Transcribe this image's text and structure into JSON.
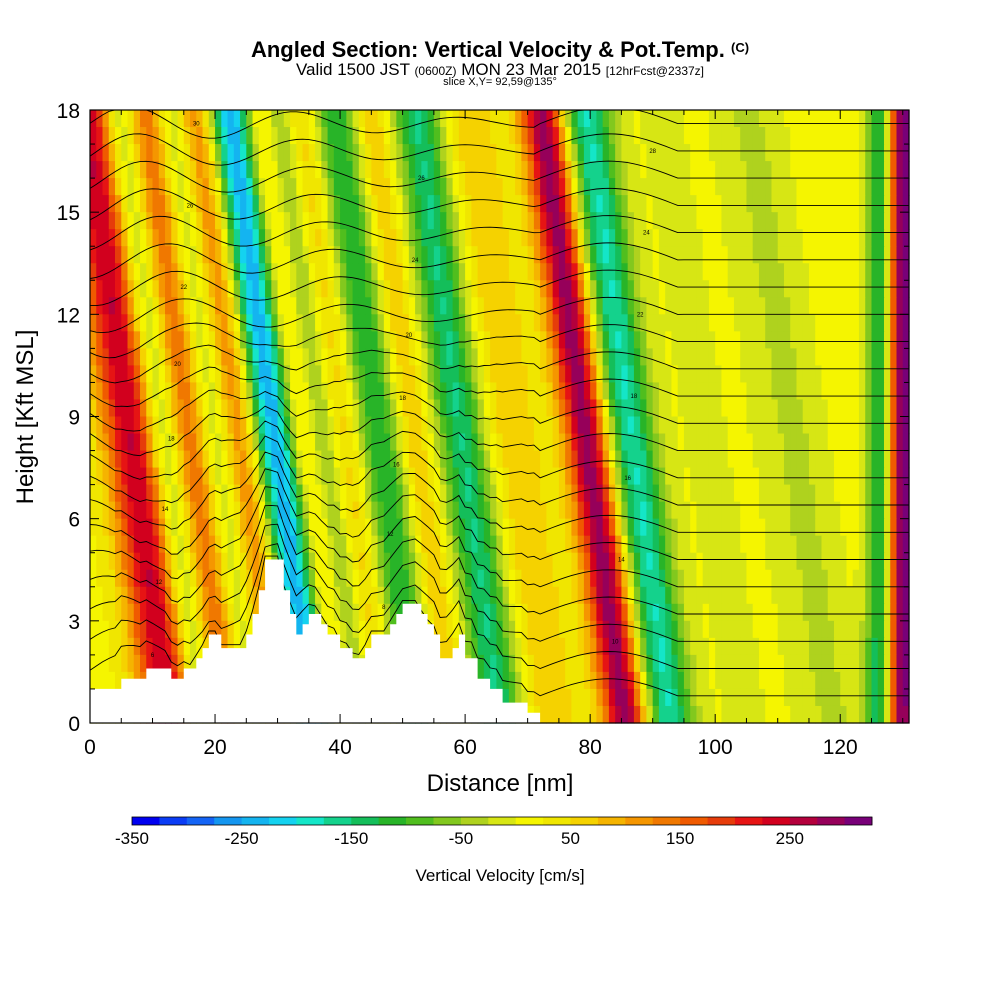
{
  "header": {
    "title": "Angled Section: Vertical Velocity & Pot.Temp.",
    "title_tag": "(C)",
    "valid_prefix": "Valid 1500 JST",
    "valid_zulu": "(0600Z)",
    "valid_date": "MON 23 Mar 2015",
    "forecast": "[12hrFcst@2337z]",
    "slice": "slice X,Y= 92,59@135°"
  },
  "chart_data": {
    "type": "heatmap",
    "title": "Angled Section: Vertical Velocity & Pot.Temp.",
    "xlabel": "Distance [nm]",
    "ylabel": "Height [Kft MSL]",
    "xlim": [
      0,
      131
    ],
    "ylim": [
      0,
      18
    ],
    "x_ticks": [
      "0",
      "20",
      "40",
      "60",
      "80",
      "100",
      "120"
    ],
    "x_tick_values": [
      0,
      20,
      40,
      60,
      80,
      100,
      120
    ],
    "y_ticks": [
      "0",
      "3",
      "6",
      "9",
      "12",
      "15",
      "18"
    ],
    "y_tick_values": [
      0,
      3,
      6,
      9,
      12,
      15,
      18
    ],
    "series": [
      {
        "name": "Vertical Velocity [cm/s]",
        "kind": "filled-contour"
      },
      {
        "name": "Pot.Temp.",
        "kind": "line-contour",
        "unit": "C"
      }
    ],
    "colorbar": {
      "label": "Vertical Velocity [cm/s]",
      "min": -350,
      "max": 300,
      "step": 25,
      "tick_labels": [
        "-350",
        "-250",
        "-150",
        "-50",
        "50",
        "150",
        "250"
      ],
      "tick_values": [
        -350,
        -250,
        -150,
        -50,
        50,
        150,
        250
      ],
      "colors": [
        "#0000f0",
        "#0a3cf5",
        "#1464f5",
        "#1496f0",
        "#14b4f0",
        "#14d2f0",
        "#14e6c8",
        "#14d28c",
        "#14be5a",
        "#28b428",
        "#50be1e",
        "#82c81e",
        "#afd21e",
        "#d7e614",
        "#f5f500",
        "#f0e600",
        "#f5d200",
        "#f5b400",
        "#f59600",
        "#f07800",
        "#f05a00",
        "#e63c0a",
        "#e61414",
        "#d2001e",
        "#b4003c",
        "#96005a",
        "#780078"
      ]
    },
    "velocity_bands": [
      {
        "x": 4,
        "w": 3.5,
        "peak": 100
      },
      {
        "x": 7,
        "w": 3.5,
        "peak": 175
      },
      {
        "x": 11.5,
        "w": 3,
        "peak": -100
      },
      {
        "x": 15.5,
        "w": 3.5,
        "peak": 150
      },
      {
        "x": 19.5,
        "w": 3,
        "peak": -100
      },
      {
        "x": 23.5,
        "w": 3.5,
        "peak": 125
      },
      {
        "x": 29,
        "w": 3.5,
        "peak": -275
      },
      {
        "x": 34,
        "w": 3,
        "peak": 100
      },
      {
        "x": 36.5,
        "w": 3,
        "peak": -125
      },
      {
        "x": 40,
        "w": 3,
        "peak": 75
      },
      {
        "x": 46,
        "w": 4,
        "peak": -150
      },
      {
        "x": 51,
        "w": 3,
        "peak": 75
      },
      {
        "x": 59,
        "w": 4,
        "peak": -175
      },
      {
        "x": 67,
        "w": 5,
        "peak": 50
      },
      {
        "x": 79,
        "w": 3.5,
        "peak": 275
      },
      {
        "x": 86,
        "w": 4,
        "peak": -200
      },
      {
        "x": 98,
        "w": 6,
        "peak": -25
      },
      {
        "x": 112,
        "w": 6,
        "peak": -50
      },
      {
        "x": 126,
        "w": 2,
        "peak": -150
      },
      {
        "x": 130,
        "w": 2,
        "peak": 300
      }
    ],
    "terrain": [
      [
        0,
        1
      ],
      [
        5,
        1
      ],
      [
        5,
        1.3
      ],
      [
        9,
        1.3
      ],
      [
        9,
        1.6
      ],
      [
        13,
        1.6
      ],
      [
        13,
        1.3
      ],
      [
        15,
        1.3
      ],
      [
        15,
        1.6
      ],
      [
        17,
        1.6
      ],
      [
        17,
        1.9
      ],
      [
        18,
        1.9
      ],
      [
        18,
        2.2
      ],
      [
        19,
        2.2
      ],
      [
        19,
        2.6
      ],
      [
        21,
        2.6
      ],
      [
        21,
        2.2
      ],
      [
        25,
        2.2
      ],
      [
        25,
        2.6
      ],
      [
        26,
        2.6
      ],
      [
        26,
        3.2
      ],
      [
        27,
        3.2
      ],
      [
        27,
        3.9
      ],
      [
        28,
        3.9
      ],
      [
        28,
        4.8
      ],
      [
        31,
        4.8
      ],
      [
        31,
        3.9
      ],
      [
        32,
        3.9
      ],
      [
        32,
        3.2
      ],
      [
        33,
        3.2
      ],
      [
        33,
        2.6
      ],
      [
        34,
        2.6
      ],
      [
        34,
        2.9
      ],
      [
        35,
        2.9
      ],
      [
        35,
        3.2
      ],
      [
        37,
        3.2
      ],
      [
        37,
        2.9
      ],
      [
        38,
        2.9
      ],
      [
        38,
        2.6
      ],
      [
        40,
        2.6
      ],
      [
        40,
        2.2
      ],
      [
        42,
        2.2
      ],
      [
        42,
        1.9
      ],
      [
        44,
        1.9
      ],
      [
        44,
        2.2
      ],
      [
        45,
        2.2
      ],
      [
        45,
        2.6
      ],
      [
        48,
        2.6
      ],
      [
        48,
        2.9
      ],
      [
        49,
        2.9
      ],
      [
        49,
        3.2
      ],
      [
        50,
        3.2
      ],
      [
        50,
        3.5
      ],
      [
        53,
        3.5
      ],
      [
        53,
        3.2
      ],
      [
        54,
        3.2
      ],
      [
        54,
        2.9
      ],
      [
        55,
        2.9
      ],
      [
        55,
        2.6
      ],
      [
        56,
        2.6
      ],
      [
        56,
        1.9
      ],
      [
        58,
        1.9
      ],
      [
        58,
        2.2
      ],
      [
        59,
        2.2
      ],
      [
        59,
        2.6
      ],
      [
        60,
        2.6
      ],
      [
        60,
        1.9
      ],
      [
        62,
        1.9
      ],
      [
        62,
        1.3
      ],
      [
        64,
        1.3
      ],
      [
        64,
        1
      ],
      [
        66,
        1
      ],
      [
        66,
        0.6
      ],
      [
        70,
        0.6
      ],
      [
        70,
        0.3
      ],
      [
        72,
        0.3
      ],
      [
        72,
        0
      ],
      [
        131,
        0
      ]
    ],
    "theta_contours": [
      {
        "z": 0.8,
        "label": "6"
      },
      {
        "z": 1.6,
        "label": "8"
      },
      {
        "z": 2.4,
        "label": "10"
      },
      {
        "z": 3.2,
        "label": "12"
      },
      {
        "z": 4.0,
        "label": "12"
      },
      {
        "z": 4.8,
        "label": "14"
      },
      {
        "z": 5.6,
        "label": "14"
      },
      {
        "z": 6.4,
        "label": "16"
      },
      {
        "z": 7.2,
        "label": "16"
      },
      {
        "z": 8.0,
        "label": "18"
      },
      {
        "z": 8.8,
        "label": "18"
      },
      {
        "z": 9.6,
        "label": "18"
      },
      {
        "z": 10.4,
        "label": "20"
      },
      {
        "z": 11.2,
        "label": "20"
      },
      {
        "z": 12.0,
        "label": "22"
      },
      {
        "z": 12.8,
        "label": "22"
      },
      {
        "z": 13.6,
        "label": "24"
      },
      {
        "z": 14.4,
        "label": "24"
      },
      {
        "z": 15.2,
        "label": "26"
      },
      {
        "z": 16.0,
        "label": "26"
      },
      {
        "z": 16.8,
        "label": "28"
      },
      {
        "z": 17.6,
        "label": "30"
      }
    ]
  },
  "colors": {
    "background": "#ffffff",
    "axes": "#000000",
    "contour": "#000000",
    "terrain": "#ffffff"
  }
}
